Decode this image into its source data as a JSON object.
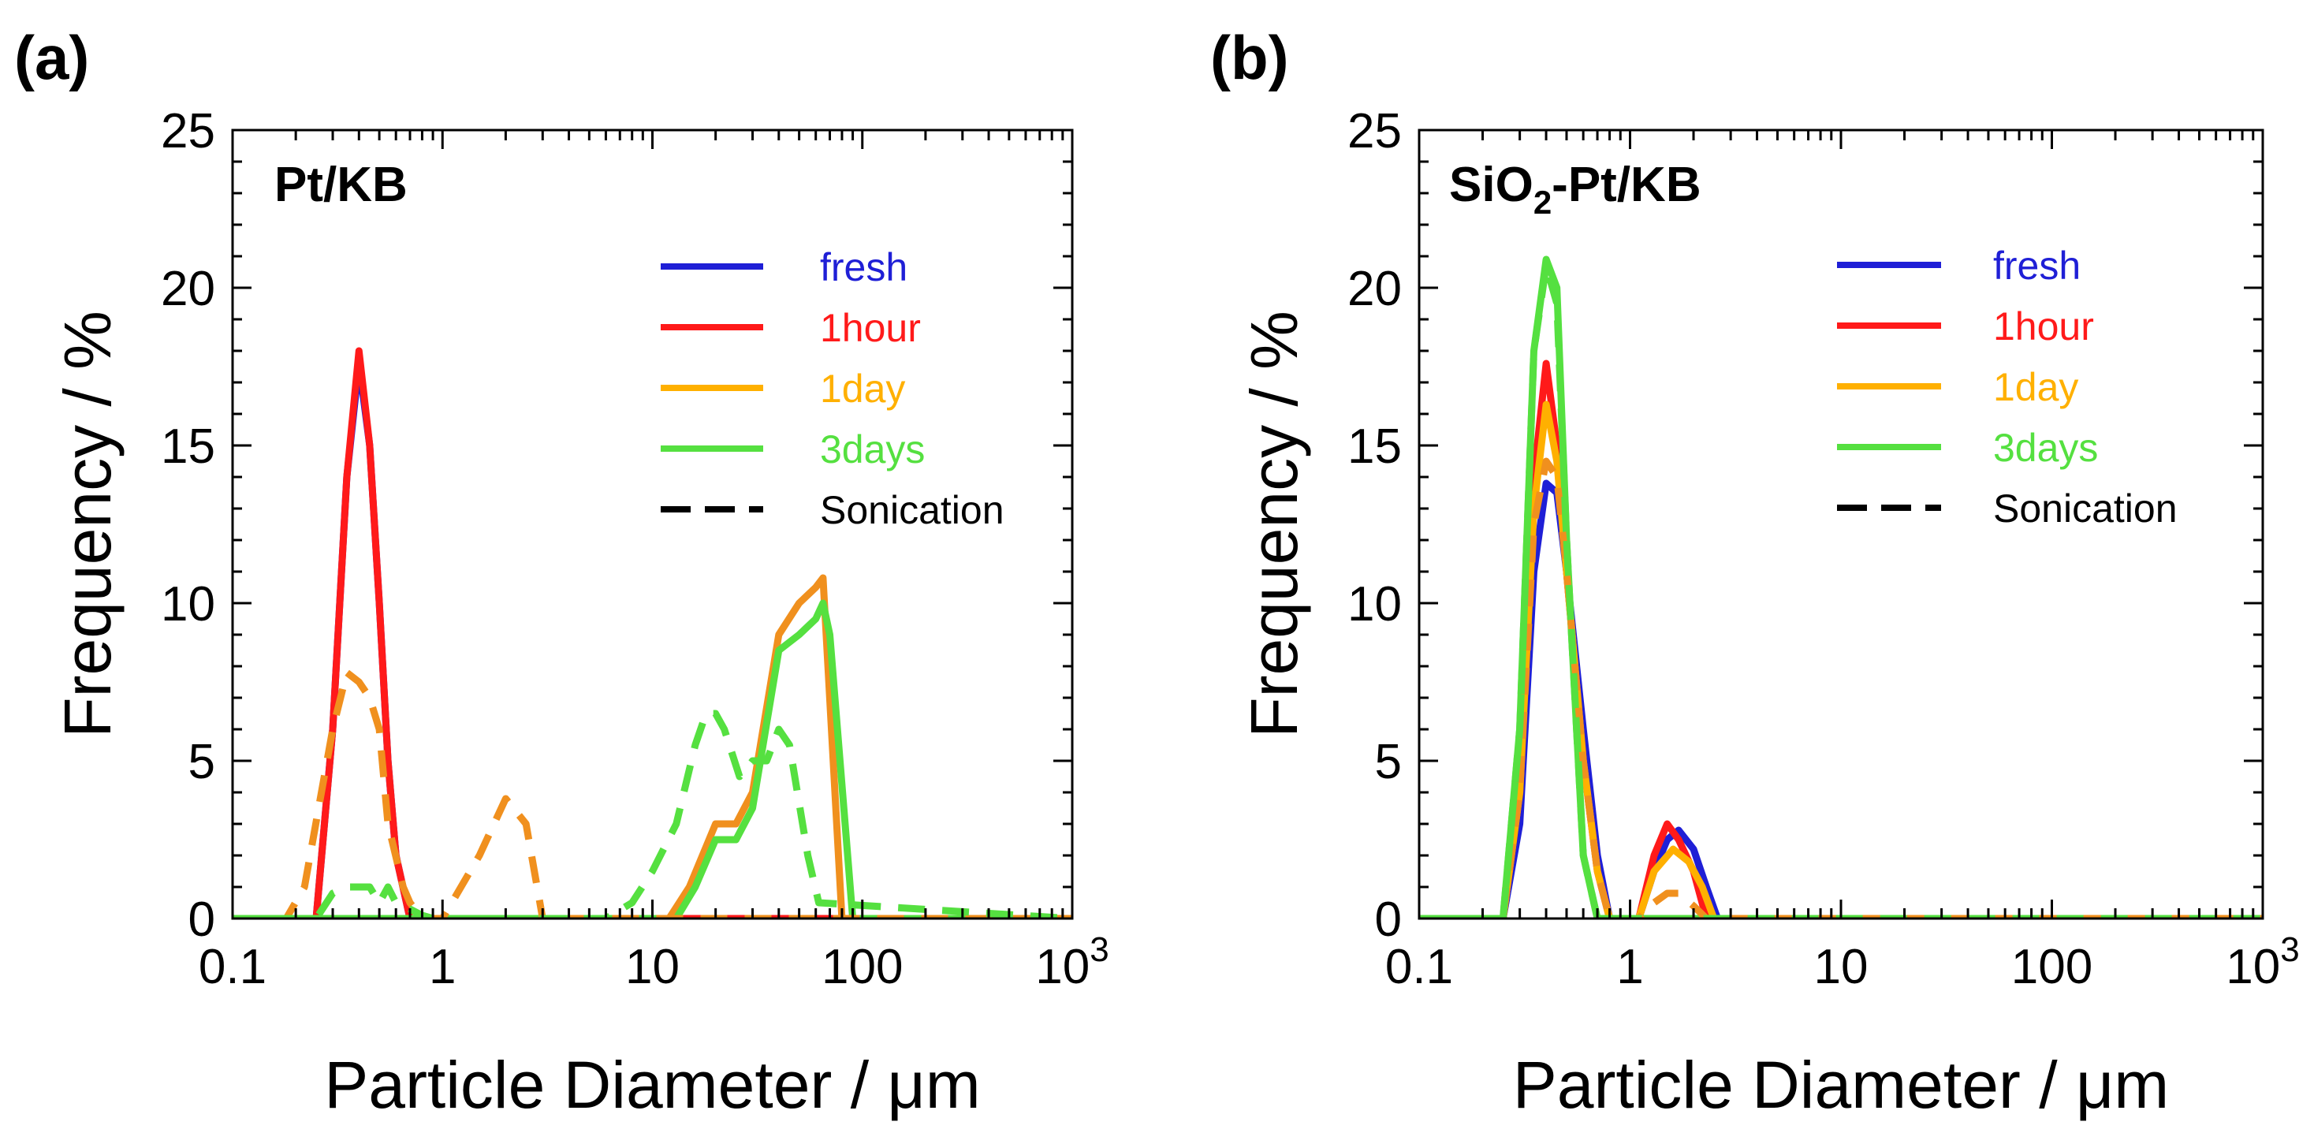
{
  "chart_data": [
    {
      "panel_label": "(a)",
      "title": "Pt/KB",
      "type": "line",
      "xscale": "log",
      "xlim": [
        0.1,
        1000
      ],
      "ylim": [
        0,
        25
      ],
      "xlabel": "Particle Diameter / μm",
      "ylabel": "Frequency / %",
      "xticks": [
        {
          "value": 0.1,
          "label": "0.1"
        },
        {
          "value": 1,
          "label": "1"
        },
        {
          "value": 10,
          "label": "10"
        },
        {
          "value": 100,
          "label": "100"
        },
        {
          "value": 1000,
          "label": "10",
          "sup": "3"
        }
      ],
      "yticks": [
        {
          "value": 0,
          "label": "0"
        },
        {
          "value": 5,
          "label": "5"
        },
        {
          "value": 10,
          "label": "10"
        },
        {
          "value": 15,
          "label": "15"
        },
        {
          "value": 20,
          "label": "20"
        },
        {
          "value": 25,
          "label": "25"
        }
      ],
      "legend": [
        {
          "label": "fresh",
          "color": "#1f1fd6",
          "dashed": false
        },
        {
          "label": "1hour",
          "color": "#ff1a1a",
          "dashed": false
        },
        {
          "label": "1day",
          "color": "#ffb000",
          "dashed": false
        },
        {
          "label": "3days",
          "color": "#55e040",
          "dashed": false
        },
        {
          "label": "Sonication",
          "color": "#000000",
          "dashed": true
        }
      ],
      "series": [
        {
          "name": "fresh",
          "color": "#1f1fd6",
          "dashed": false,
          "x": [
            0.1,
            0.25,
            0.3,
            0.35,
            0.4,
            0.45,
            0.5,
            0.55,
            0.6,
            0.7,
            1000
          ],
          "y": [
            0,
            0,
            6,
            14,
            17.6,
            15,
            10,
            5,
            2,
            0,
            0
          ]
        },
        {
          "name": "1hour",
          "color": "#ff1a1a",
          "dashed": false,
          "x": [
            0.1,
            0.25,
            0.3,
            0.35,
            0.4,
            0.45,
            0.5,
            0.55,
            0.6,
            0.7,
            1000
          ],
          "y": [
            0,
            0,
            6,
            14,
            18,
            15,
            10,
            5,
            2,
            0,
            0
          ]
        },
        {
          "name": "1day",
          "color": "#f0901e",
          "dashed": false,
          "x": [
            0.1,
            12,
            15,
            20,
            25,
            30,
            40,
            50,
            60,
            65,
            80,
            1000
          ],
          "y": [
            0,
            0,
            1,
            3,
            3,
            4,
            9,
            10,
            10.5,
            10.8,
            0,
            0
          ]
        },
        {
          "name": "3days",
          "color": "#55e040",
          "dashed": false,
          "x": [
            0.1,
            13,
            16,
            20,
            25,
            30,
            40,
            50,
            60,
            65,
            70,
            90,
            1000
          ],
          "y": [
            0,
            0,
            1,
            2.5,
            2.5,
            3.5,
            8.5,
            9,
            9.5,
            10,
            9,
            0,
            0
          ]
        },
        {
          "name": "1day Sonication",
          "color": "#f0901e",
          "dashed": true,
          "x": [
            0.1,
            0.18,
            0.22,
            0.3,
            0.35,
            0.4,
            0.45,
            0.5,
            0.55,
            0.65,
            0.7,
            0.8,
            1,
            1.5,
            2,
            2.5,
            3,
            3.5,
            1000
          ],
          "y": [
            0,
            0,
            1,
            6,
            7.8,
            7.5,
            7,
            6,
            3,
            1,
            0.5,
            0,
            0,
            2,
            3.8,
            3,
            0,
            0,
            0
          ]
        },
        {
          "name": "3days Sonication",
          "color": "#55e040",
          "dashed": true,
          "x": [
            0.1,
            0.25,
            0.3,
            0.35,
            0.45,
            0.5,
            0.55,
            0.6,
            0.7,
            0.8,
            0.9,
            6,
            8,
            10,
            13,
            16,
            18,
            20,
            22,
            26,
            30,
            35,
            40,
            45,
            55,
            62,
            1000
          ],
          "y": [
            0,
            0,
            0.8,
            1,
            1,
            0.5,
            1,
            0.5,
            0.3,
            0.1,
            0,
            0,
            0.5,
            1.5,
            3,
            5.5,
            6.5,
            6.5,
            6,
            4.5,
            5,
            5,
            6,
            5.5,
            2,
            0.5,
            0
          ]
        }
      ]
    },
    {
      "panel_label": "(b)",
      "title": "SiO",
      "title_sub": "2",
      "title_suffix": "-Pt/KB",
      "type": "line",
      "xscale": "log",
      "xlim": [
        0.1,
        1000
      ],
      "ylim": [
        0,
        25
      ],
      "xlabel": "Particle Diameter / μm",
      "ylabel": "Frequency / %",
      "xticks": [
        {
          "value": 0.1,
          "label": "0.1"
        },
        {
          "value": 1,
          "label": "1"
        },
        {
          "value": 10,
          "label": "10"
        },
        {
          "value": 100,
          "label": "100"
        },
        {
          "value": 1000,
          "label": "10",
          "sup": "3"
        }
      ],
      "yticks": [
        {
          "value": 0,
          "label": "0"
        },
        {
          "value": 5,
          "label": "5"
        },
        {
          "value": 10,
          "label": "10"
        },
        {
          "value": 15,
          "label": "15"
        },
        {
          "value": 20,
          "label": "20"
        },
        {
          "value": 25,
          "label": "25"
        }
      ],
      "legend": [
        {
          "label": "fresh",
          "color": "#1f1fd6",
          "dashed": false
        },
        {
          "label": "1hour",
          "color": "#ff1a1a",
          "dashed": false
        },
        {
          "label": "1day",
          "color": "#ffb000",
          "dashed": false
        },
        {
          "label": "3days",
          "color": "#55e040",
          "dashed": false
        },
        {
          "label": "Sonication",
          "color": "#000000",
          "dashed": true
        }
      ],
      "series": [
        {
          "name": "fresh",
          "color": "#1f1fd6",
          "dashed": false,
          "x": [
            0.1,
            0.25,
            0.3,
            0.35,
            0.4,
            0.45,
            0.5,
            0.6,
            0.7,
            0.8,
            1.1,
            1.3,
            1.5,
            1.7,
            2,
            2.3,
            2.6,
            1000
          ],
          "y": [
            0,
            0,
            3,
            11,
            13.8,
            13.5,
            11,
            6,
            2,
            0,
            0,
            1.5,
            2.5,
            2.8,
            2.2,
            1,
            0,
            0
          ]
        },
        {
          "name": "1hour",
          "color": "#ff1a1a",
          "dashed": false,
          "x": [
            0.1,
            0.25,
            0.3,
            0.35,
            0.4,
            0.45,
            0.5,
            0.6,
            0.7,
            0.8,
            1.1,
            1.3,
            1.5,
            1.7,
            2,
            2.3,
            1000
          ],
          "y": [
            0,
            0,
            4,
            14,
            17.6,
            15,
            11,
            5,
            1.5,
            0,
            0,
            2,
            3,
            2.5,
            1.5,
            0,
            0
          ]
        },
        {
          "name": "1day",
          "color": "#ffb000",
          "dashed": false,
          "x": [
            0.1,
            0.25,
            0.3,
            0.35,
            0.4,
            0.45,
            0.5,
            0.6,
            0.7,
            0.8,
            1.1,
            1.3,
            1.6,
            1.9,
            2.2,
            2.5,
            1000
          ],
          "y": [
            0,
            0,
            4,
            13,
            16.3,
            14.5,
            11,
            5,
            1.5,
            0,
            0,
            1.5,
            2.2,
            1.8,
            1,
            0,
            0
          ]
        },
        {
          "name": "3days",
          "color": "#55e040",
          "dashed": false,
          "x": [
            0.1,
            0.25,
            0.3,
            0.35,
            0.4,
            0.45,
            0.5,
            0.6,
            0.7,
            1000
          ],
          "y": [
            0,
            0,
            6,
            18,
            20.9,
            20,
            12,
            2,
            0,
            0
          ]
        },
        {
          "name": "1day Sonication",
          "color": "#f0901e",
          "dashed": true,
          "x": [
            0.1,
            0.25,
            0.3,
            0.35,
            0.4,
            0.45,
            0.5,
            0.6,
            0.7,
            0.8,
            1.1,
            1.3,
            1.5,
            1.7,
            2,
            2.3,
            1000
          ],
          "y": [
            0,
            0,
            4,
            12.5,
            14.5,
            14,
            11,
            5,
            1.5,
            0,
            0,
            0.5,
            0.8,
            0.8,
            0.4,
            0,
            0
          ]
        },
        {
          "name": "3days Sonication",
          "color": "#55e040",
          "dashed": true,
          "x": [
            0.1,
            0.25,
            0.3,
            0.35,
            0.4,
            0.45,
            0.5,
            0.6,
            0.7,
            1000
          ],
          "y": [
            0,
            0,
            6,
            18,
            20.7,
            19.5,
            12,
            2,
            0,
            0
          ]
        }
      ]
    }
  ]
}
